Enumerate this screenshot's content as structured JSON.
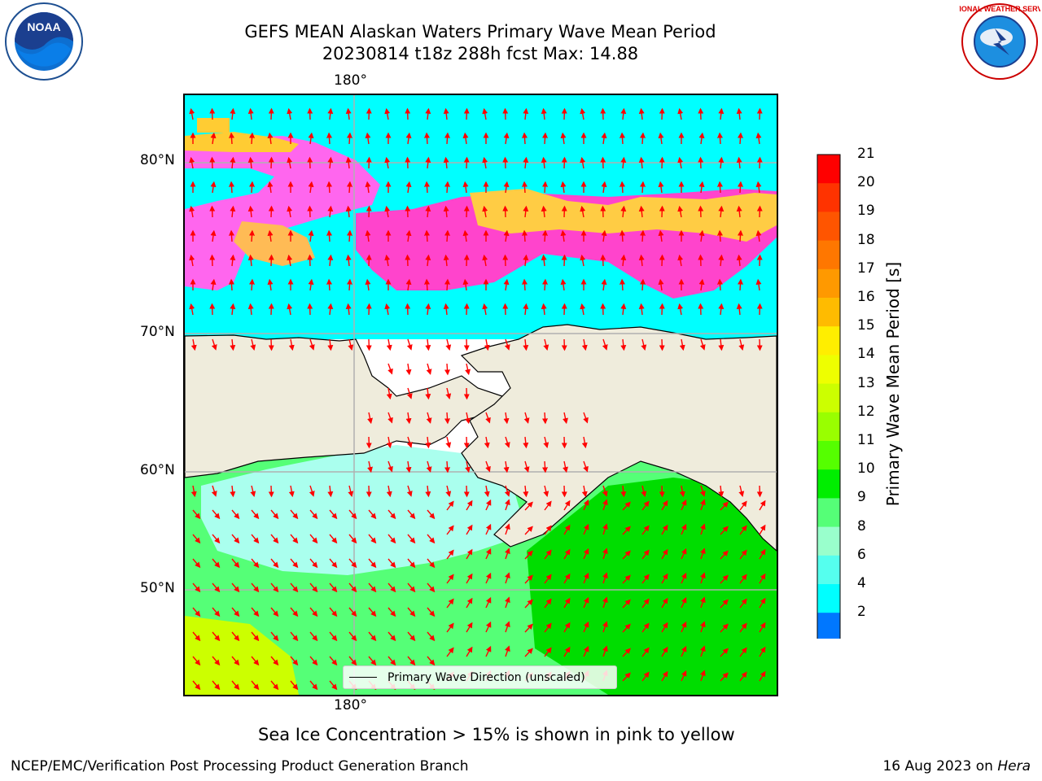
{
  "title": {
    "line1": "GEFS MEAN Alaskan Waters Primary Wave Mean Period",
    "line2": "20230814 t18z 288h fcst   Max: 14.88"
  },
  "logos": {
    "left": {
      "name": "NOAA",
      "text": "NOAA"
    },
    "right": {
      "name": "National Weather Service",
      "text": "NATIONAL WEATHER SERVICE"
    }
  },
  "map": {
    "lon_label_top": "180°",
    "lon_label_bottom": "180°",
    "lat_labels": [
      "80°N",
      "70°N",
      "60°N",
      "50°N"
    ],
    "land_color": "#efecdc",
    "legend_text": "Primary Wave Direction (unscaled)",
    "arrow_color": "#ff0000"
  },
  "colorbar": {
    "label": "Primary Wave Mean Period [s]",
    "ticks": [
      "21",
      "20",
      "19",
      "18",
      "17",
      "16",
      "15",
      "14",
      "13",
      "12",
      "11",
      "10",
      "9",
      "8",
      "6",
      "4",
      "2"
    ],
    "colors": [
      "#ff0000",
      "#ff3300",
      "#ff5500",
      "#ff7700",
      "#ff9900",
      "#ffbb00",
      "#ffee00",
      "#eeff00",
      "#ccff00",
      "#99ff00",
      "#55ff00",
      "#00ee00",
      "#55ff77",
      "#99ffcc",
      "#55ffee",
      "#00ffff",
      "#0077ff"
    ],
    "extend_color": "#0000ff"
  },
  "ice_note": "Sea Ice Concentration > 15% is shown in pink to yellow",
  "footer": {
    "left": "NCEP/EMC/Verification Post Processing Product Generation Branch",
    "right_date": "16 Aug 2023 on ",
    "right_host": "Hera"
  }
}
